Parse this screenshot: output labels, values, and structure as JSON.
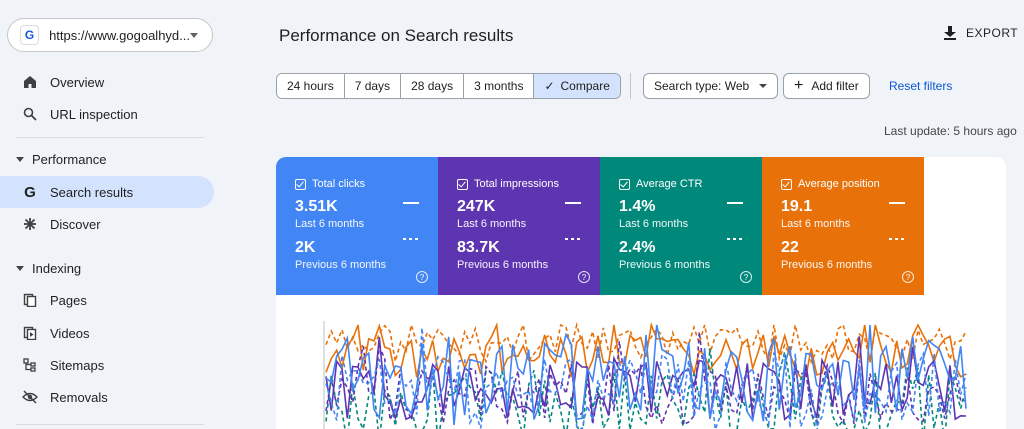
{
  "sidebar": {
    "property": {
      "url": "https://www.gogoalhyd..."
    },
    "nav": [
      {
        "label": "Overview",
        "icon": "home-icon"
      },
      {
        "label": "URL inspection",
        "icon": "search-icon"
      }
    ],
    "performance": {
      "label": "Performance",
      "items": [
        {
          "label": "Search results",
          "icon": "google-g-icon"
        },
        {
          "label": "Discover",
          "icon": "asterisk-icon"
        }
      ]
    },
    "indexing": {
      "label": "Indexing",
      "items": [
        {
          "label": "Pages",
          "icon": "pages-icon"
        },
        {
          "label": "Videos",
          "icon": "videos-icon"
        },
        {
          "label": "Sitemaps",
          "icon": "sitemap-icon"
        },
        {
          "label": "Removals",
          "icon": "eye-off-icon"
        }
      ]
    }
  },
  "header": {
    "title": "Performance on Search results",
    "export_label": "EXPORT"
  },
  "filters": {
    "ranges": [
      "24 hours",
      "7 days",
      "28 days",
      "3 months"
    ],
    "compare_label": "Compare",
    "search_type": "Search type: Web",
    "add_filter": "Add filter",
    "reset": "Reset filters"
  },
  "last_update": "Last update: 5 hours ago",
  "metrics": [
    {
      "label": "Total clicks",
      "value": "3.51K",
      "period": "Last 6 months",
      "prev_value": "2K",
      "prev_period": "Previous 6 months",
      "color": "#4285f4"
    },
    {
      "label": "Total impressions",
      "value": "247K",
      "period": "Last 6 months",
      "prev_value": "83.7K",
      "prev_period": "Previous 6 months",
      "color": "#5e35b1"
    },
    {
      "label": "Average CTR",
      "value": "1.4%",
      "period": "Last 6 months",
      "prev_value": "2.4%",
      "prev_period": "Previous 6 months",
      "color": "#00897b"
    },
    {
      "label": "Average position",
      "value": "19.1",
      "period": "Last 6 months",
      "prev_value": "22",
      "prev_period": "Previous 6 months",
      "color": "#e8710a"
    }
  ],
  "chart_colors": {
    "clicks": "#4285f4",
    "impressions": "#5e35b1",
    "ctr": "#00897b",
    "position": "#e8710a"
  }
}
